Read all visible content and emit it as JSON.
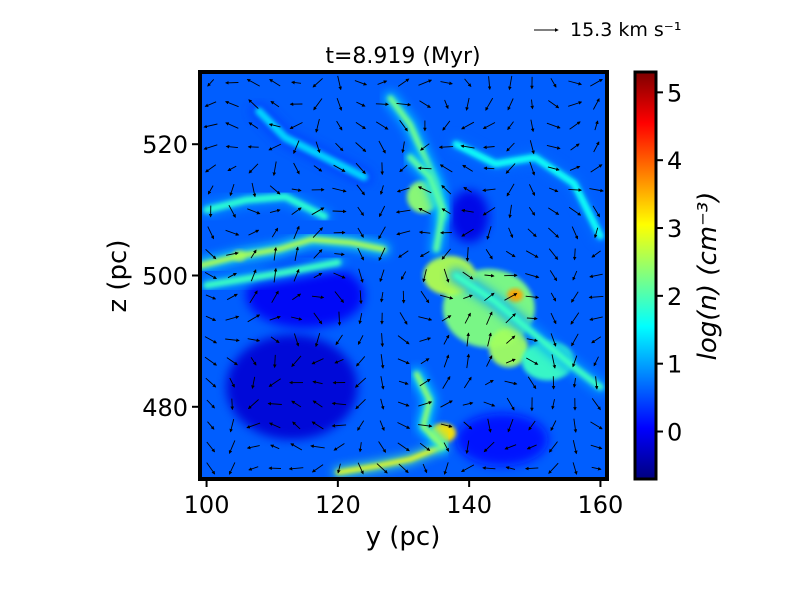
{
  "chart_data": {
    "type": "heatmap",
    "title": "t=8.919 (Myr)",
    "xlabel": "y (pc)",
    "ylabel": "z (pc)",
    "xlim": [
      99,
      161
    ],
    "ylim": [
      469,
      531
    ],
    "xticks": [
      100,
      120,
      140,
      160
    ],
    "yticks": [
      480,
      500,
      520
    ],
    "colorbar": {
      "label": "log(n) (cm⁻³)",
      "range": [
        -0.7,
        5.3
      ],
      "ticks": [
        0,
        1,
        2,
        3,
        4,
        5
      ],
      "colormap": "jet"
    },
    "quiver_reference": {
      "value": 15.3,
      "label": "15.3 km s⁻¹"
    },
    "background_level": 0.6,
    "features": [
      {
        "kind": "filament",
        "points": [
          [
            99,
            501.5
          ],
          [
            105,
            503
          ],
          [
            111,
            504
          ],
          [
            116,
            505.5
          ],
          [
            122,
            505
          ],
          [
            127,
            504
          ]
        ],
        "level": 2.6
      },
      {
        "kind": "filament",
        "points": [
          [
            100,
            498.5
          ],
          [
            106,
            499.5
          ],
          [
            112,
            500.5
          ],
          [
            120,
            502
          ]
        ],
        "level": 1.9
      },
      {
        "kind": "filament",
        "points": [
          [
            100,
            510
          ],
          [
            106,
            511.5
          ],
          [
            112,
            512
          ],
          [
            118,
            509
          ]
        ],
        "level": 1.8
      },
      {
        "kind": "filament",
        "points": [
          [
            128,
            527
          ],
          [
            131,
            523
          ],
          [
            133,
            518.5
          ],
          [
            135,
            514
          ],
          [
            136,
            509
          ]
        ],
        "level": 2.2
      },
      {
        "kind": "filament",
        "points": [
          [
            131,
            518
          ],
          [
            134,
            515
          ],
          [
            136,
            510
          ],
          [
            135,
            504
          ]
        ],
        "level": 2.1
      },
      {
        "kind": "filament",
        "points": [
          [
            138,
            520
          ],
          [
            144,
            517
          ],
          [
            150,
            518
          ],
          [
            156,
            514
          ],
          [
            160,
            506
          ]
        ],
        "level": 1.6
      },
      {
        "kind": "filament",
        "points": [
          [
            120,
            470
          ],
          [
            126,
            471
          ],
          [
            131,
            472
          ],
          [
            136,
            474
          ]
        ],
        "level": 3.0
      },
      {
        "kind": "filament",
        "points": [
          [
            132,
            485
          ],
          [
            134,
            481
          ],
          [
            133,
            477
          ],
          [
            136,
            474
          ]
        ],
        "level": 2.4
      },
      {
        "kind": "filament",
        "points": [
          [
            138,
            500
          ],
          [
            144,
            496
          ],
          [
            150,
            491
          ],
          [
            156,
            486
          ],
          [
            160,
            483
          ]
        ],
        "level": 1.9
      },
      {
        "kind": "filament",
        "points": [
          [
            108,
            525
          ],
          [
            112,
            521
          ],
          [
            118,
            518
          ],
          [
            124,
            515
          ]
        ],
        "level": 1.3
      },
      {
        "kind": "clump",
        "center": [
          143,
          495
        ],
        "radius": [
          7,
          6
        ],
        "level": 2.3
      },
      {
        "kind": "clump",
        "center": [
          137,
          500
        ],
        "radius": [
          4,
          3
        ],
        "level": 2.6
      },
      {
        "kind": "clump",
        "center": [
          146,
          489
        ],
        "radius": [
          3,
          3
        ],
        "level": 2.5
      },
      {
        "kind": "clump",
        "center": [
          133,
          512
        ],
        "radius": [
          2.5,
          2.5
        ],
        "level": 2.4
      },
      {
        "kind": "clump",
        "center": [
          152,
          487
        ],
        "radius": [
          4,
          3
        ],
        "level": 1.9
      },
      {
        "kind": "clump",
        "center": [
          136,
          476
        ],
        "radius": [
          2,
          1.5
        ],
        "level": 3.2
      },
      {
        "kind": "clump",
        "center": [
          147,
          497
        ],
        "radius": [
          1.2,
          1.0
        ],
        "level": 3.6
      },
      {
        "kind": "clump",
        "center": [
          105,
          503
        ],
        "radius": [
          1.0,
          0.8
        ],
        "level": 3.3
      },
      {
        "kind": "void",
        "center": [
          113,
          483
        ],
        "radius": [
          10,
          8
        ],
        "level": -0.2
      },
      {
        "kind": "void",
        "center": [
          115,
          497
        ],
        "radius": [
          9,
          5
        ],
        "level": 0.0
      },
      {
        "kind": "void",
        "center": [
          145,
          475
        ],
        "radius": [
          7,
          4
        ],
        "level": 0.1
      },
      {
        "kind": "void",
        "center": [
          140,
          509
        ],
        "radius": [
          3,
          4
        ],
        "level": -0.1
      }
    ]
  }
}
